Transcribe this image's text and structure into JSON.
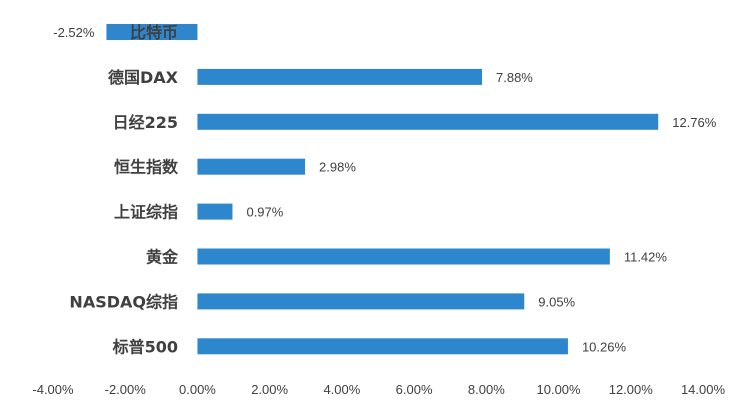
{
  "chart_data": {
    "type": "bar",
    "orientation": "horizontal",
    "categories": [
      "比特币",
      "德国DAX",
      "日经225",
      "恒生指数",
      "上证综指",
      "黄金",
      "NASDAQ综指",
      "标普500"
    ],
    "values": [
      -2.52,
      7.88,
      12.76,
      2.98,
      0.97,
      11.42,
      9.05,
      10.26
    ],
    "data_labels": [
      "-2.52%",
      "7.88%",
      "12.76%",
      "2.98%",
      "0.97%",
      "11.42%",
      "9.05%",
      "10.26%"
    ],
    "xlim": [
      -4,
      14
    ],
    "ticks": [
      -4,
      -2,
      0,
      2,
      4,
      6,
      8,
      10,
      12,
      14
    ],
    "tick_labels": [
      "-4.00%",
      "-2.00%",
      "0.00%",
      "2.00%",
      "4.00%",
      "6.00%",
      "8.00%",
      "10.00%",
      "12.00%",
      "14.00%"
    ],
    "title": "",
    "xlabel": "",
    "ylabel": "",
    "grid": false,
    "legend": "none",
    "bar_color": "#2E86CC",
    "text_color": "#404040"
  }
}
